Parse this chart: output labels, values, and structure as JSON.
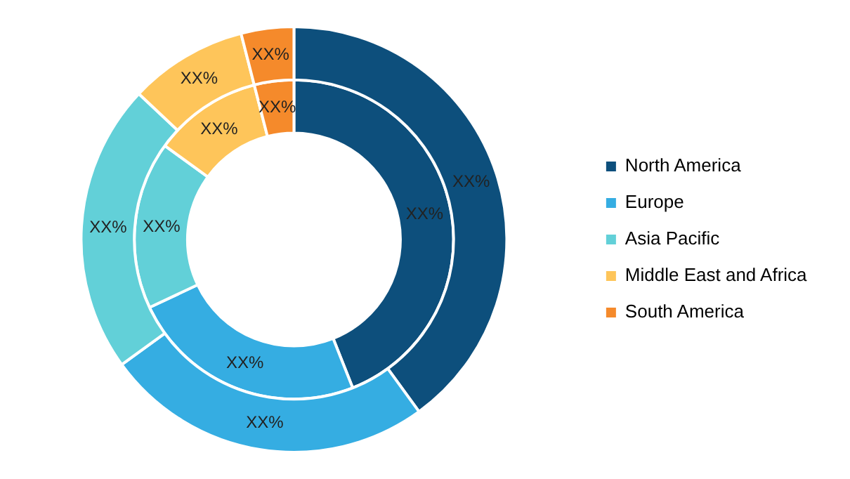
{
  "chart_data": {
    "type": "donut",
    "categories": [
      "North America",
      "Europe",
      "Asia Pacific",
      "Middle East and Africa",
      "South America"
    ],
    "series": [
      {
        "values": [
          40,
          25,
          22,
          9,
          4
        ],
        "colors": [
          "#0d4f7c",
          "#35ade2",
          "#62d0d8",
          "#fec55a",
          "#f58a2b"
        ],
        "value_labels": [
          "XX%",
          "XX%",
          "XX%",
          "XX%",
          "XX%"
        ]
      },
      {
        "values": [
          44,
          24,
          17,
          11,
          4
        ],
        "colors": [
          "#0d4f7c",
          "#35ade2",
          "#62d0d8",
          "#fec55a",
          "#f58a2b"
        ],
        "value_labels": [
          "XX%",
          "XX%",
          "XX%",
          "XX%",
          "XX%"
        ]
      }
    ],
    "legend": "right"
  }
}
